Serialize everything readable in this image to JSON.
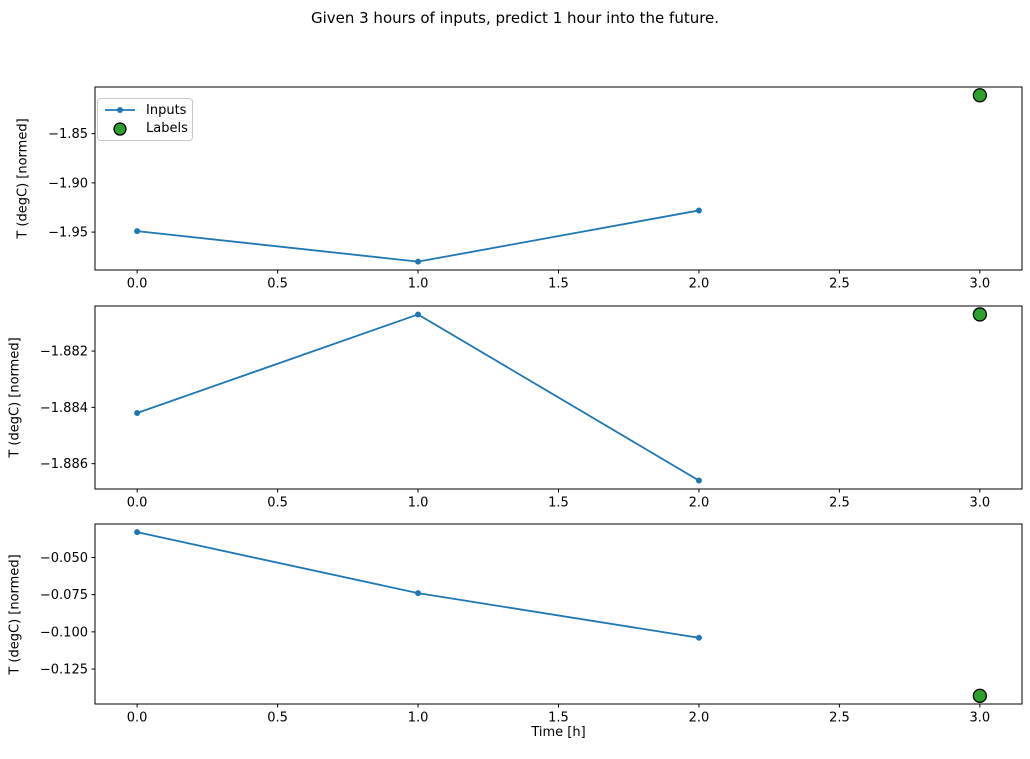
{
  "title": "Given 3 hours of inputs, predict 1 hour into the future.",
  "colors": {
    "inputs_line": "#1f77b4",
    "labels_fill": "#2ca02c",
    "labels_edge": "#000000",
    "axis": "#000000",
    "text": "#000000"
  },
  "legend": {
    "entries": [
      {
        "label": "Inputs",
        "marker": "line-dot"
      },
      {
        "label": "Labels",
        "marker": "circle"
      }
    ]
  },
  "chart_data": [
    {
      "type": "line",
      "ylabel": "T (degC) [normed]",
      "xlabel": "",
      "series": [
        {
          "name": "Inputs",
          "x": [
            0,
            1,
            2
          ],
          "y": [
            -1.949,
            -1.98,
            -1.928
          ]
        }
      ],
      "labels_series": {
        "name": "Labels",
        "x": [
          3
        ],
        "y": [
          -1.811
        ]
      },
      "xlim": [
        -0.15,
        3.15
      ],
      "ylim": [
        -1.9885,
        -1.8026
      ],
      "xticks": {
        "values": [
          0,
          0.5,
          1,
          1.5,
          2,
          2.5,
          3
        ],
        "labels": [
          "0.0",
          "0.5",
          "1.0",
          "1.5",
          "2.0",
          "2.5",
          "3.0"
        ]
      },
      "yticks": {
        "values": [
          -1.85,
          -1.9,
          -1.95
        ],
        "labels": [
          "−1.85",
          "−1.90",
          "−1.95"
        ]
      },
      "legend_visible": true,
      "grid": false
    },
    {
      "type": "line",
      "ylabel": "T (degC) [normed]",
      "xlabel": "",
      "series": [
        {
          "name": "Inputs",
          "x": [
            0,
            1,
            2
          ],
          "y": [
            -1.8842,
            -1.8807,
            -1.8866
          ]
        }
      ],
      "labels_series": {
        "name": "Labels",
        "x": [
          3
        ],
        "y": [
          -1.8807
        ]
      },
      "xlim": [
        -0.15,
        3.15
      ],
      "ylim": [
        -1.8869,
        -1.8804
      ],
      "xticks": {
        "values": [
          0,
          0.5,
          1,
          1.5,
          2,
          2.5,
          3
        ],
        "labels": [
          "0.0",
          "0.5",
          "1.0",
          "1.5",
          "2.0",
          "2.5",
          "3.0"
        ]
      },
      "yticks": {
        "values": [
          -1.882,
          -1.884,
          -1.886
        ],
        "labels": [
          "−1.882",
          "−1.884",
          "−1.886"
        ]
      },
      "legend_visible": false,
      "grid": false
    },
    {
      "type": "line",
      "ylabel": "T (degC) [normed]",
      "xlabel": "Time [h]",
      "series": [
        {
          "name": "Inputs",
          "x": [
            0,
            1,
            2
          ],
          "y": [
            -0.033,
            -0.074,
            -0.104
          ]
        }
      ],
      "labels_series": {
        "name": "Labels",
        "x": [
          3
        ],
        "y": [
          -0.143
        ]
      },
      "xlim": [
        -0.15,
        3.15
      ],
      "ylim": [
        -0.1485,
        -0.0275
      ],
      "xticks": {
        "values": [
          0,
          0.5,
          1,
          1.5,
          2,
          2.5,
          3
        ],
        "labels": [
          "0.0",
          "0.5",
          "1.0",
          "1.5",
          "2.0",
          "2.5",
          "3.0"
        ]
      },
      "yticks": {
        "values": [
          -0.05,
          -0.075,
          -0.1,
          -0.125
        ],
        "labels": [
          "−0.050",
          "−0.075",
          "−0.100",
          "−0.125"
        ]
      },
      "legend_visible": false,
      "grid": false
    }
  ]
}
